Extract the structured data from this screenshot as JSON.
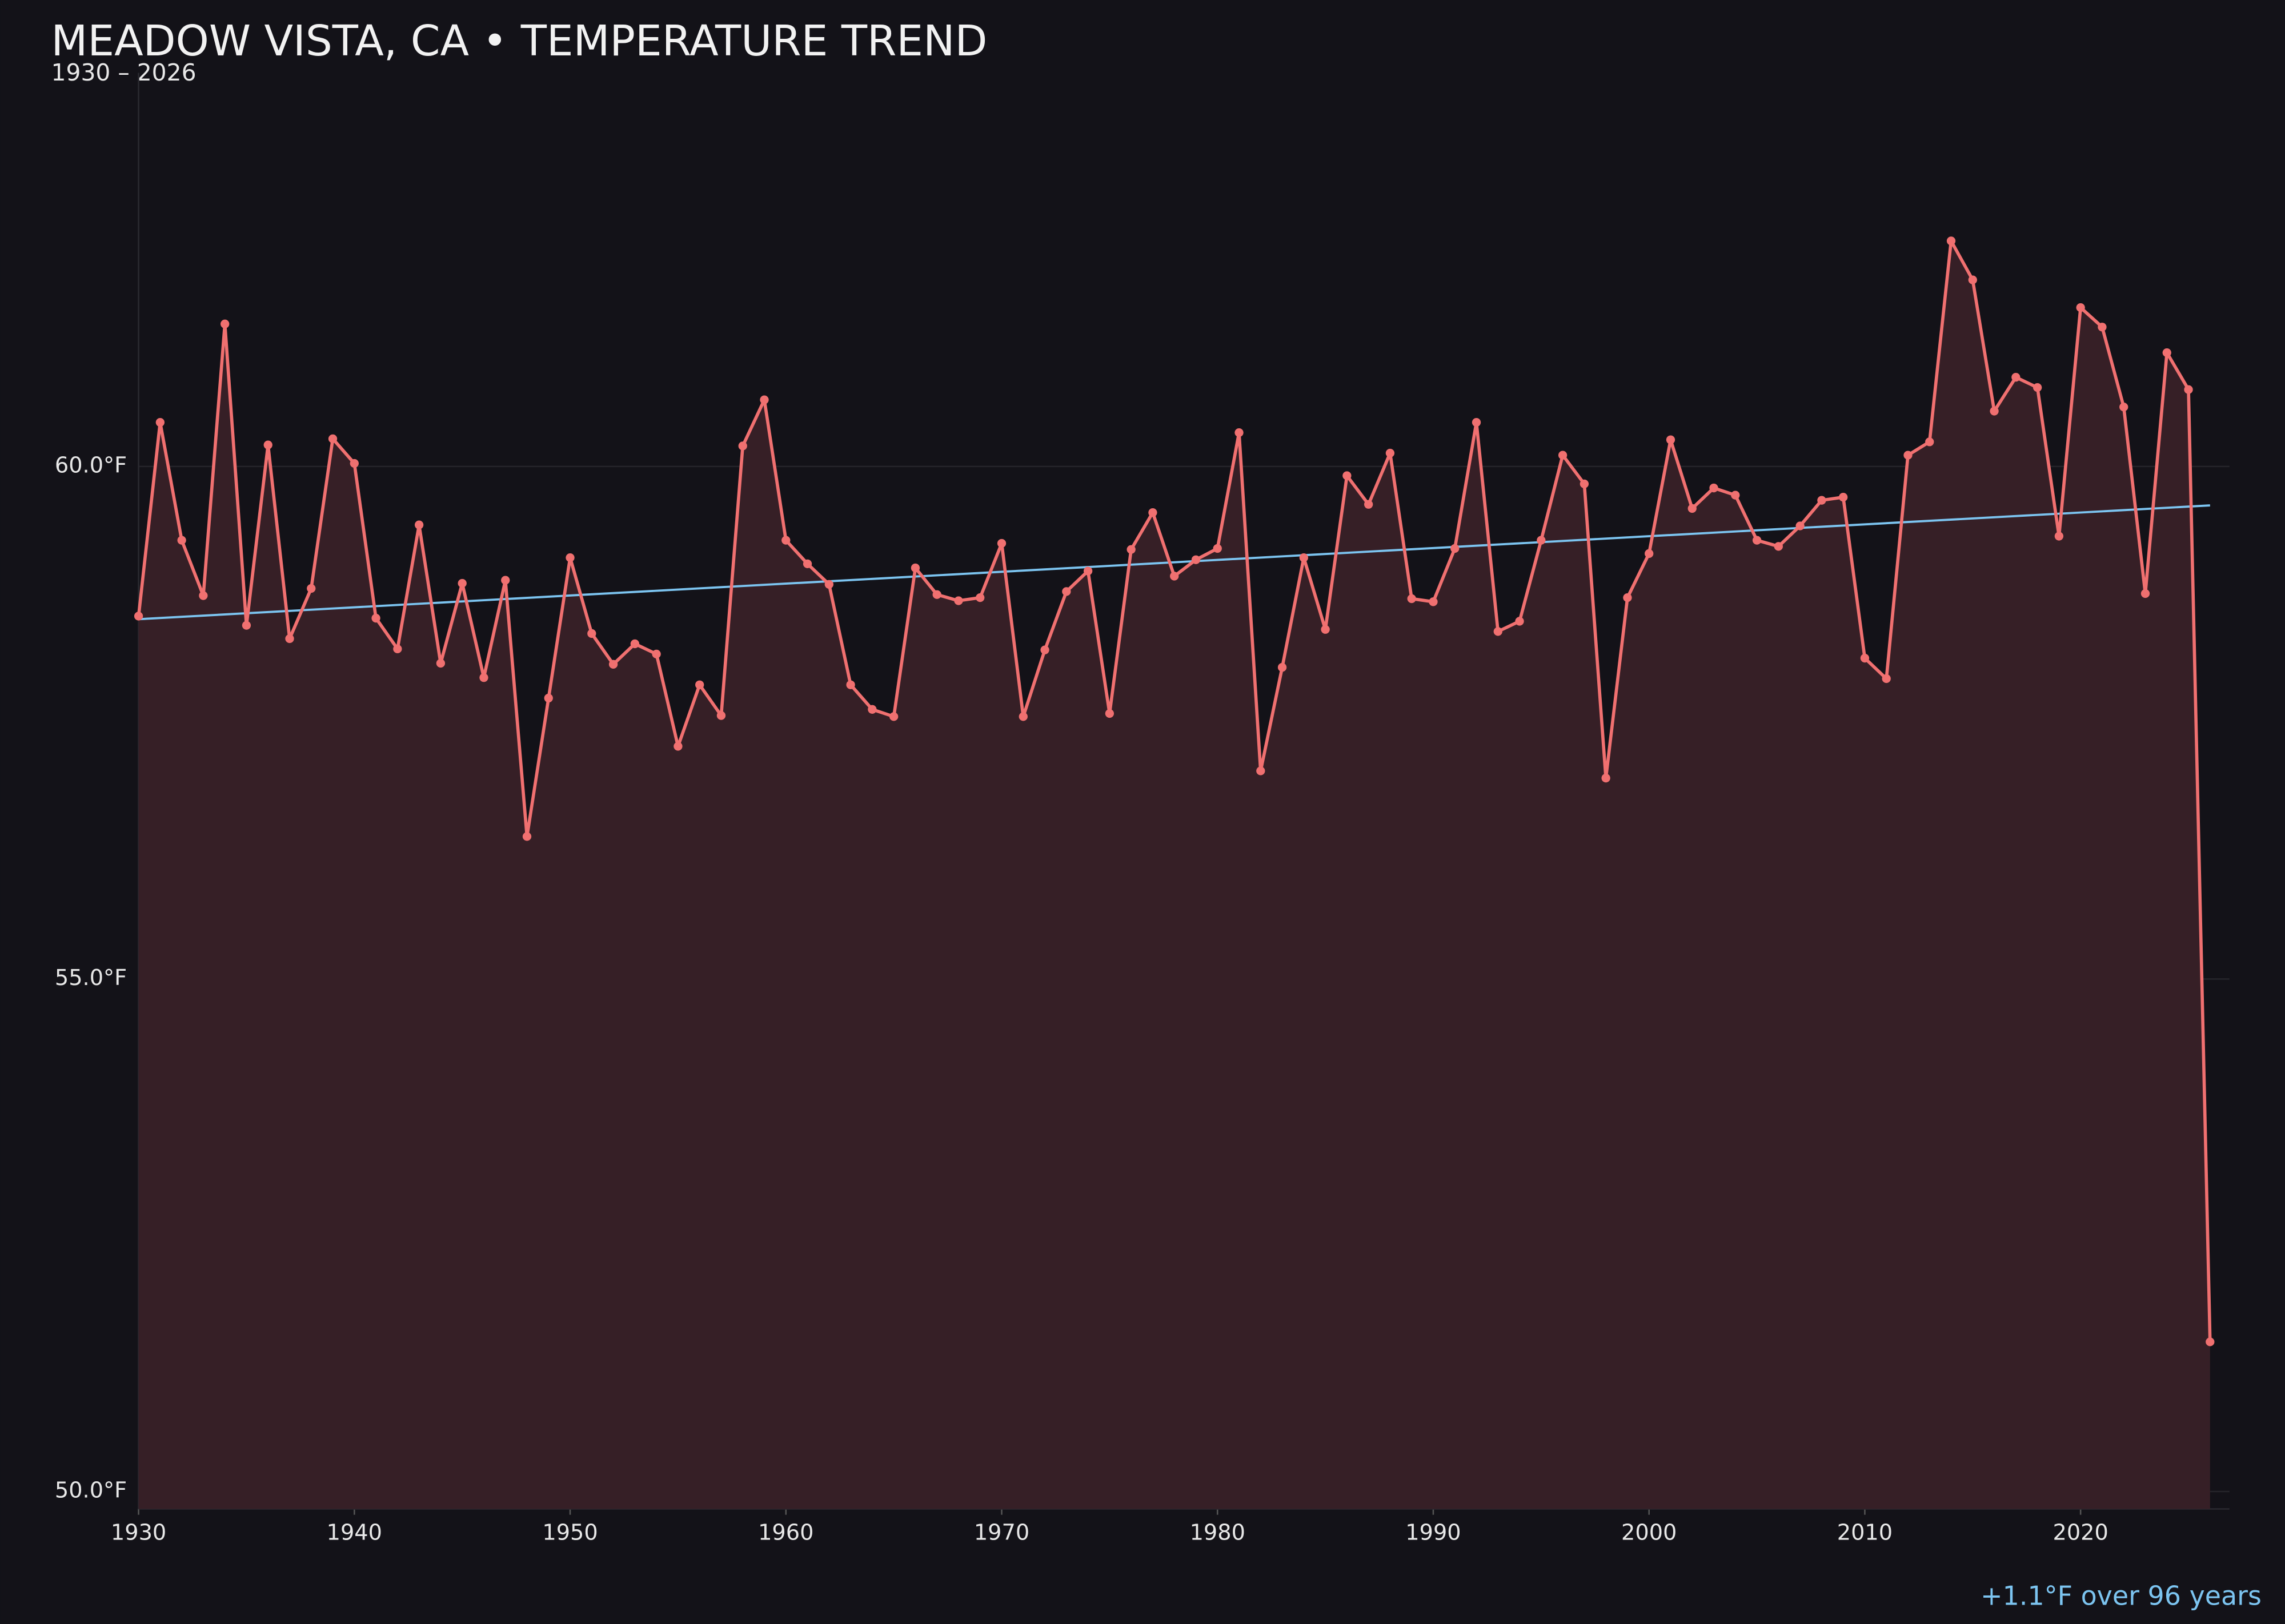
{
  "chart_data": {
    "type": "line",
    "title": "MEADOW VISTA, CA • TEMPERATURE TREND",
    "subtitle": "1930 – 2026",
    "annotation": "+1.1°F over 96 years",
    "x": [
      1930,
      1931,
      1932,
      1933,
      1934,
      1935,
      1936,
      1937,
      1938,
      1939,
      1940,
      1941,
      1942,
      1943,
      1944,
      1945,
      1946,
      1947,
      1948,
      1949,
      1950,
      1951,
      1952,
      1953,
      1954,
      1955,
      1956,
      1957,
      1958,
      1959,
      1960,
      1961,
      1962,
      1963,
      1964,
      1965,
      1966,
      1967,
      1968,
      1969,
      1970,
      1971,
      1972,
      1973,
      1974,
      1975,
      1976,
      1977,
      1978,
      1979,
      1980,
      1981,
      1982,
      1983,
      1984,
      1985,
      1986,
      1987,
      1988,
      1989,
      1990,
      1991,
      1992,
      1993,
      1994,
      1995,
      1996,
      1997,
      1998,
      1999,
      2000,
      2001,
      2002,
      2003,
      2004,
      2005,
      2006,
      2007,
      2008,
      2009,
      2010,
      2011,
      2012,
      2013,
      2014,
      2015,
      2016,
      2017,
      2018,
      2019,
      2020,
      2021,
      2022,
      2023,
      2024,
      2025,
      2026
    ],
    "values": [
      58.54,
      60.43,
      59.28,
      58.74,
      61.39,
      58.45,
      60.21,
      58.32,
      58.81,
      60.27,
      60.03,
      58.52,
      58.22,
      59.43,
      58.08,
      58.86,
      57.94,
      58.89,
      56.39,
      57.74,
      59.11,
      58.37,
      58.07,
      58.27,
      58.17,
      57.27,
      57.87,
      57.57,
      60.2,
      60.65,
      59.28,
      59.05,
      58.85,
      57.87,
      57.63,
      57.56,
      59.01,
      58.75,
      58.69,
      58.72,
      59.25,
      57.56,
      58.21,
      58.78,
      58.98,
      57.59,
      59.19,
      59.55,
      58.93,
      59.09,
      59.2,
      60.33,
      57.03,
      58.04,
      59.11,
      58.41,
      59.91,
      59.63,
      60.13,
      58.71,
      58.68,
      59.2,
      60.43,
      58.39,
      58.49,
      59.28,
      60.11,
      59.83,
      56.96,
      58.72,
      59.15,
      60.26,
      59.59,
      59.79,
      59.72,
      59.28,
      59.22,
      59.42,
      59.67,
      59.7,
      58.13,
      57.93,
      60.11,
      60.24,
      62.2,
      61.82,
      60.54,
      60.87,
      60.77,
      59.32,
      61.55,
      61.36,
      60.58,
      58.76,
      61.11,
      60.75,
      51.46
    ],
    "color": "#f07070",
    "fill": "#361f26",
    "trend": {
      "x": [
        1930,
        2026
      ],
      "values": [
        58.51,
        59.62
      ],
      "color": "#7cc4f0"
    },
    "xlim": [
      1930,
      2026.9
    ],
    "ylim": [
      49.83,
      63.84
    ],
    "xticks": [
      1930,
      1940,
      1950,
      1960,
      1970,
      1980,
      1990,
      2000,
      2010,
      2020
    ],
    "yticks": [
      {
        "value": 50,
        "label": "50.0°F"
      },
      {
        "value": 55,
        "label": "55.0°F"
      },
      {
        "value": 60,
        "label": "60.0°F"
      }
    ],
    "grid": true
  }
}
